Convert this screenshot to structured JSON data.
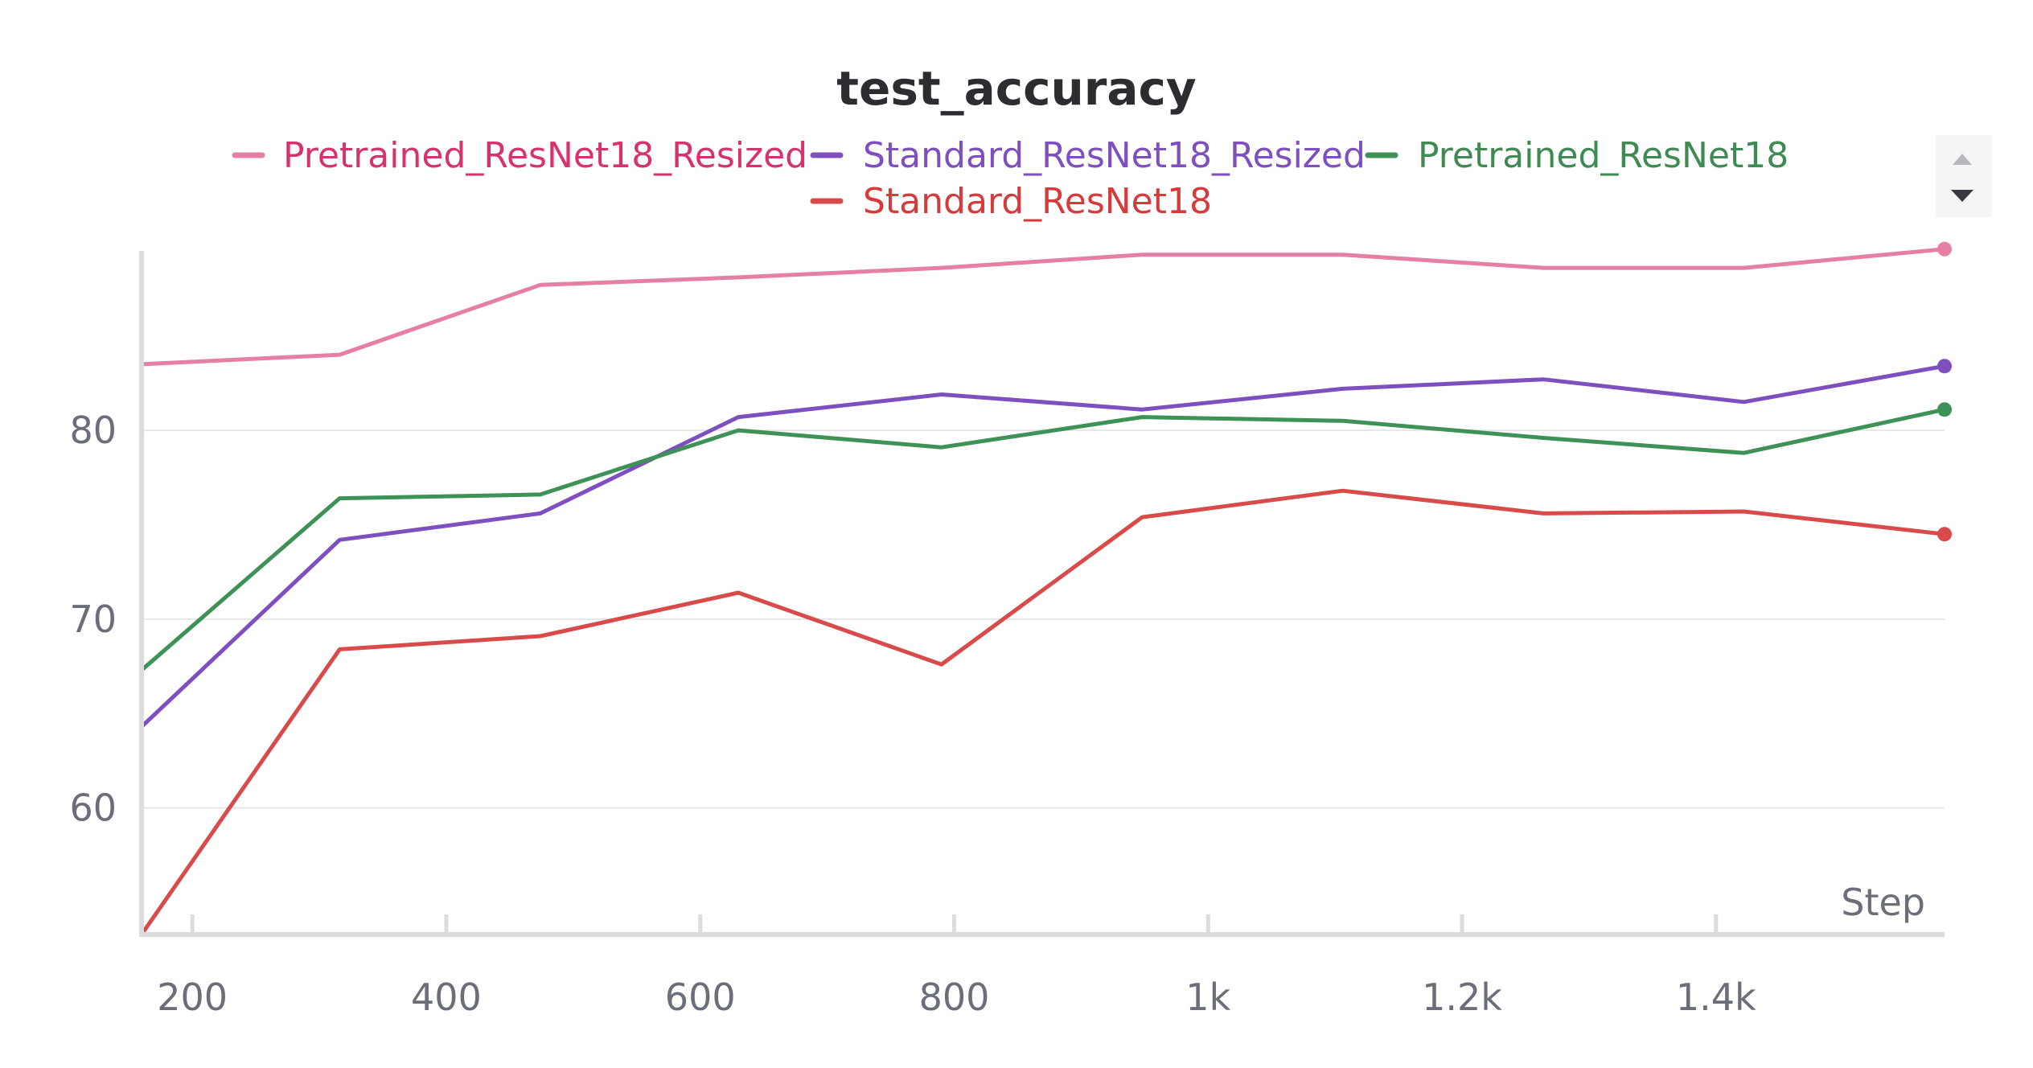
{
  "chart_data": {
    "type": "line",
    "title": "test_accuracy",
    "xlabel": "Step",
    "ylabel": "",
    "xlim": [
      160,
      1580
    ],
    "ylim": [
      53.3,
      89.5
    ],
    "x_ticks": [
      200,
      400,
      600,
      800,
      1000,
      1200,
      1400
    ],
    "x_tick_labels": [
      "200",
      "400",
      "600",
      "800",
      "1k",
      "1.2k",
      "1.4k"
    ],
    "y_ticks": [
      60,
      70,
      80
    ],
    "y_tick_labels": [
      "60",
      "70",
      "80"
    ],
    "grid": true,
    "legend_position": "top",
    "series": [
      {
        "name": "Pretrained_ResNet18_Resized",
        "color": "#e67fa6",
        "text_color": "#d6336c",
        "x": [
          160,
          316,
          474,
          630,
          790,
          948,
          1106,
          1264,
          1422,
          1580
        ],
        "values": [
          83.5,
          84.0,
          87.7,
          88.1,
          88.6,
          89.3,
          89.3,
          88.6,
          88.6,
          89.6
        ]
      },
      {
        "name": "Standard_ResNet18_Resized",
        "color": "#7e4fbf",
        "text_color": "#7e4fbf",
        "x": [
          160,
          316,
          474,
          630,
          790,
          948,
          1106,
          1264,
          1422,
          1580
        ],
        "values": [
          64.3,
          74.2,
          75.6,
          80.7,
          81.9,
          81.1,
          82.2,
          82.7,
          81.5,
          83.4
        ]
      },
      {
        "name": "Pretrained_ResNet18",
        "color": "#3e9257",
        "text_color": "#3e8a52",
        "x": [
          160,
          316,
          474,
          630,
          790,
          948,
          1106,
          1264,
          1422,
          1580
        ],
        "values": [
          67.3,
          76.4,
          76.6,
          80.0,
          79.1,
          80.7,
          80.5,
          79.6,
          78.8,
          81.1
        ]
      },
      {
        "name": "Standard_ResNet18",
        "color": "#d94a4a",
        "text_color": "#d63a3a",
        "x": [
          160,
          316,
          474,
          630,
          790,
          948,
          1106,
          1264,
          1422,
          1580
        ],
        "values": [
          53.3,
          68.4,
          69.1,
          71.4,
          67.6,
          75.4,
          76.8,
          75.6,
          75.7,
          74.5
        ]
      }
    ]
  }
}
